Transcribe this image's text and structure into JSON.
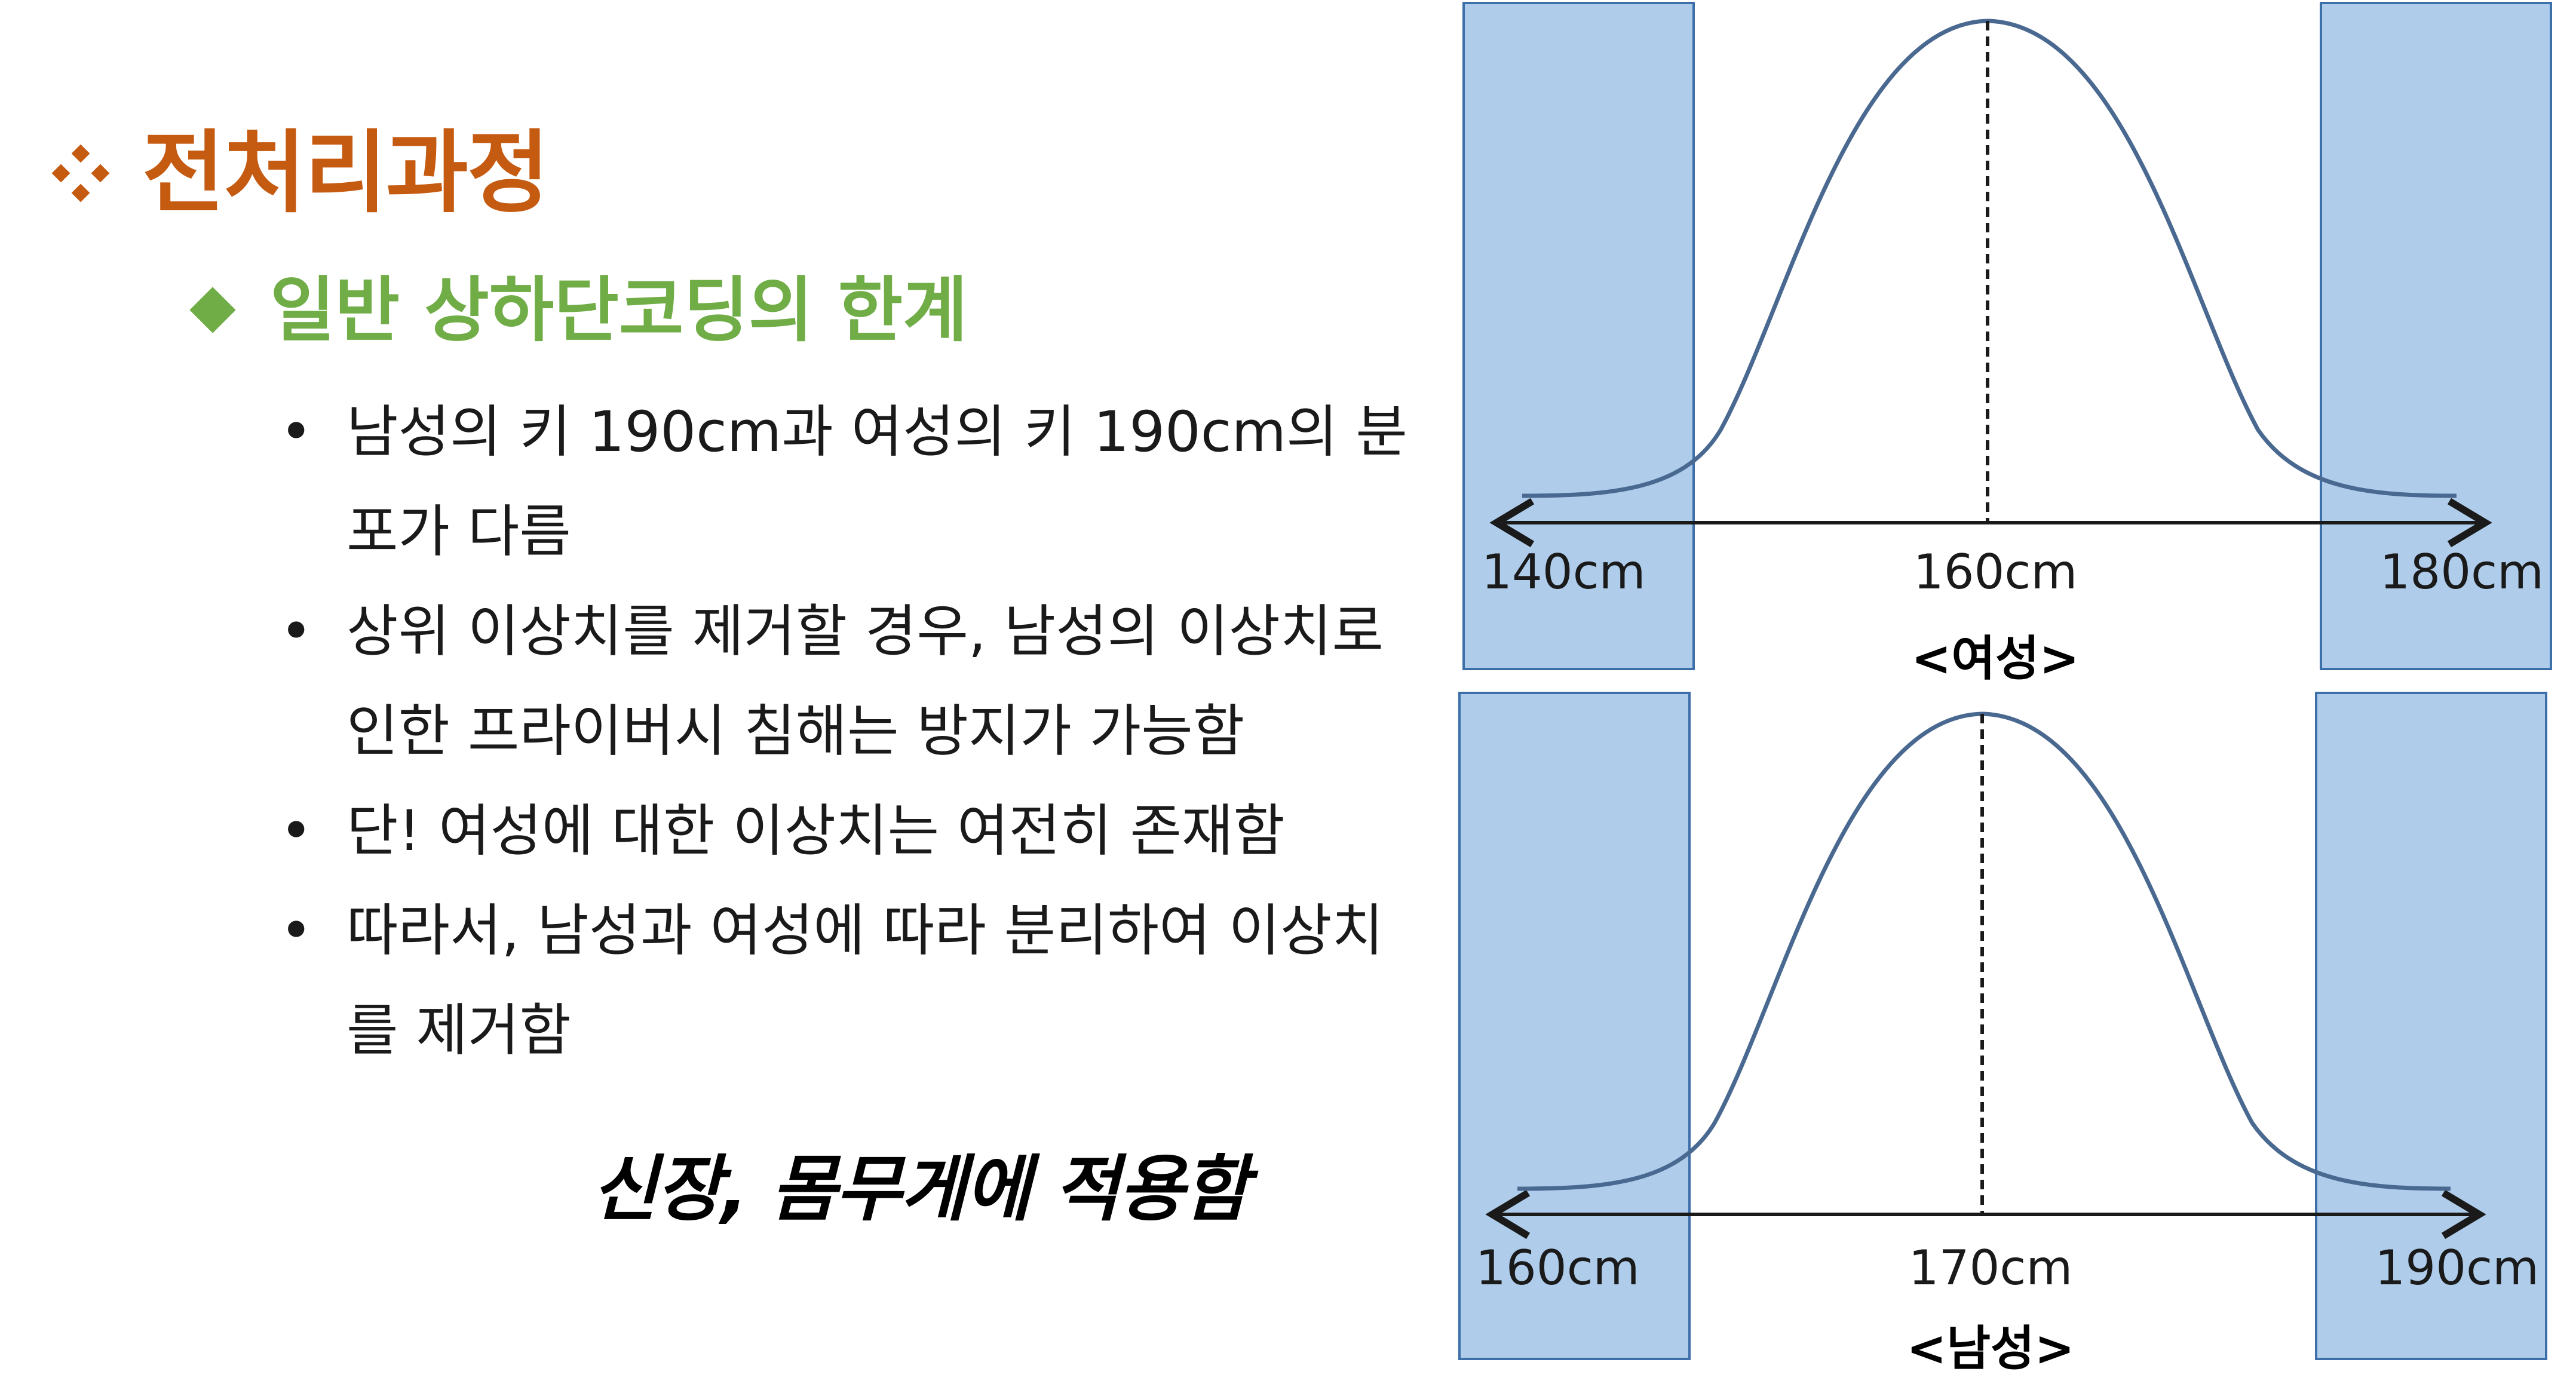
{
  "slide": {
    "title": "전처리과정",
    "subtitle": "일반 상하단코딩의 한계",
    "bullets": [
      "남성의 키 190cm과 여성의 키 190cm의 분포가 다름",
      "상위 이상치를 제거할 경우, 남성의 이상치로 인한 프라이버시 침해는 방지가 가능함",
      "단! 여성에 대한 이상치는 여전히 존재함",
      "따라서, 남성과 여성에 따라 분리하여 이상치를 제거함"
    ],
    "emphasis": "신장, 몸무게에 적용함",
    "bullet_glyph": "•",
    "title_icon": "diamond-cluster-icon",
    "subtitle_icon": "diamond-icon"
  },
  "colors": {
    "title": "#c55a11",
    "subtitle": "#70ad47",
    "tail_fill": "#afcdeb",
    "tail_border": "#3d6fa8",
    "curve": "#4a6990",
    "axis": "#1a1a1a"
  },
  "distributions": [
    {
      "label": "<여성>",
      "left_tick": "140cm",
      "center_tick": "160cm",
      "right_tick": "180cm"
    },
    {
      "label": "<남성>",
      "left_tick": "160cm",
      "center_tick": "170cm",
      "right_tick": "190cm"
    }
  ]
}
